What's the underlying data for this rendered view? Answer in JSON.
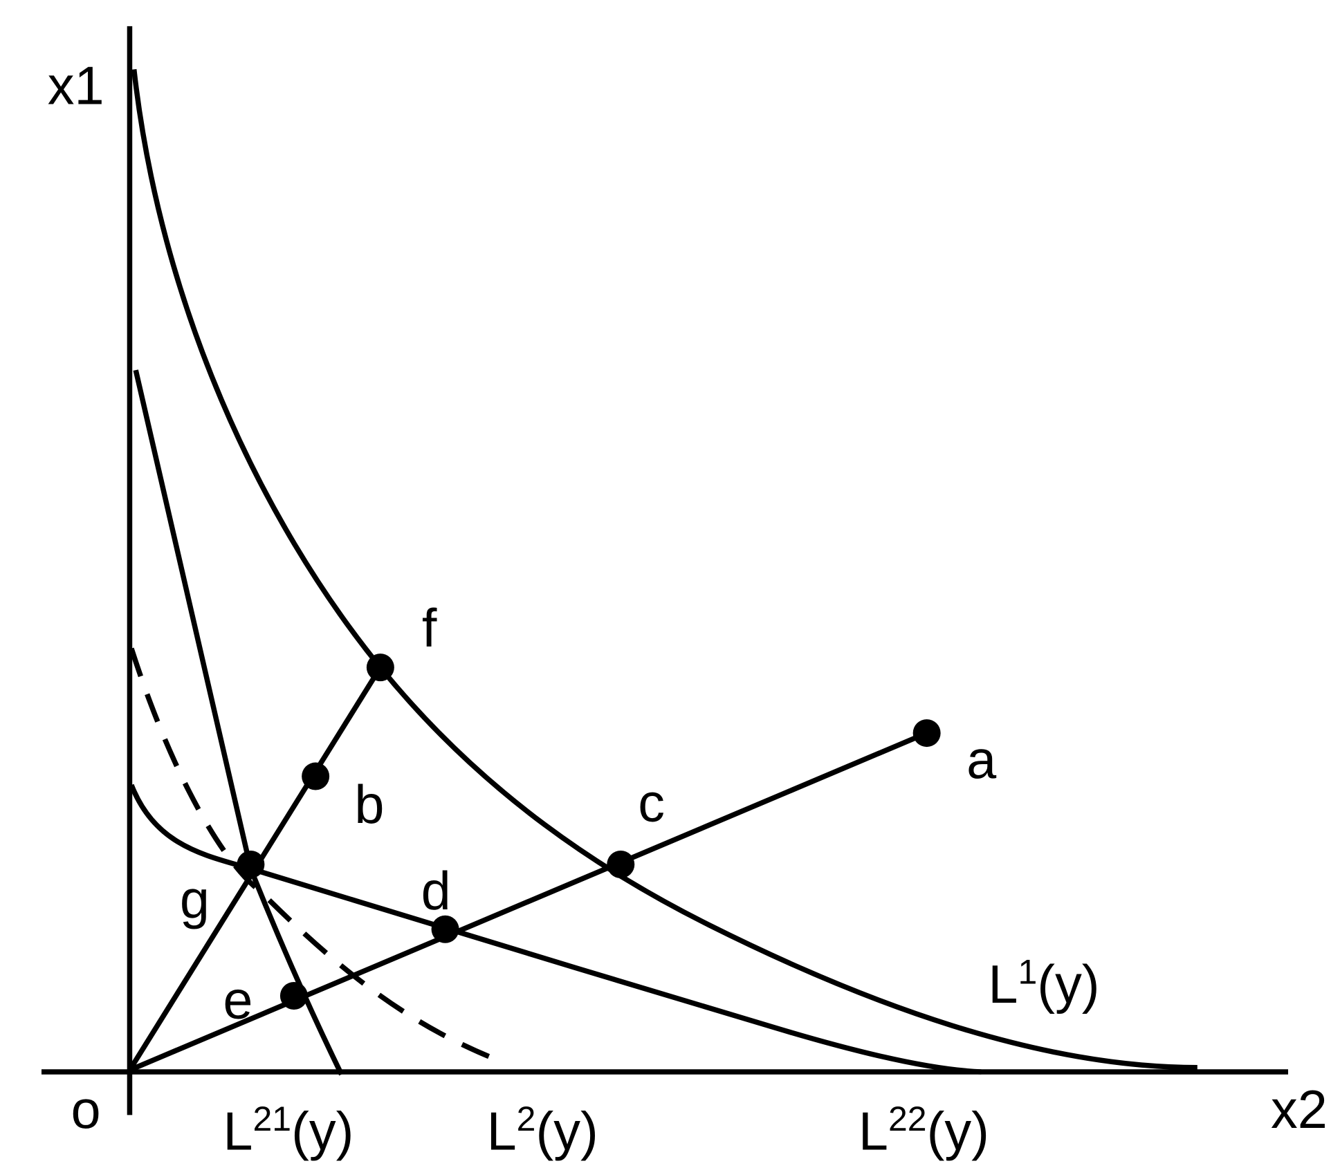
{
  "axes": {
    "y_label": "x1",
    "x_label": "x2",
    "origin_label": "o"
  },
  "points": [
    {
      "label": "a"
    },
    {
      "label": "b"
    },
    {
      "label": "c"
    },
    {
      "label": "d"
    },
    {
      "label": "e"
    },
    {
      "label": "f"
    },
    {
      "label": "g"
    }
  ],
  "curves": [
    {
      "base": "L",
      "sup": "1",
      "tail": "(y)"
    },
    {
      "base": "L",
      "sup": "21",
      "tail": "(y)"
    },
    {
      "base": "L",
      "sup": "2",
      "tail": "(y)"
    },
    {
      "base": "L",
      "sup": "22",
      "tail": "(y)"
    }
  ]
}
